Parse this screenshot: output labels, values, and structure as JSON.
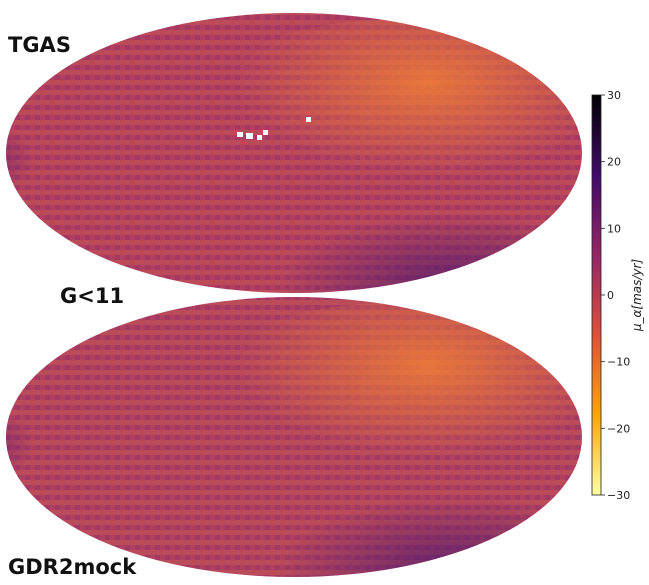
{
  "chart_data": {
    "type": "heatmap",
    "projection": "mollweide-all-sky",
    "panels": [
      {
        "label": "TGAS",
        "description_values": "proper motion map, TGAS"
      },
      {
        "label": "GDR2mock",
        "description_values": "proper motion map, GDR2mock"
      }
    ],
    "annotation": "G<11",
    "colorbar": {
      "label": "μ_α[mas/yr]",
      "range": [
        -30,
        30
      ],
      "ticks": [
        30,
        20,
        10,
        0,
        -10,
        -20,
        -30
      ],
      "tick_labels": [
        "30",
        "20",
        "10",
        "0",
        "−10",
        "−20",
        "−30"
      ],
      "colormap": "inferno-reversed",
      "stops": [
        "#000004",
        "#420a68",
        "#932667",
        "#dd513a",
        "#fca50a",
        "#fcffa4"
      ]
    }
  }
}
